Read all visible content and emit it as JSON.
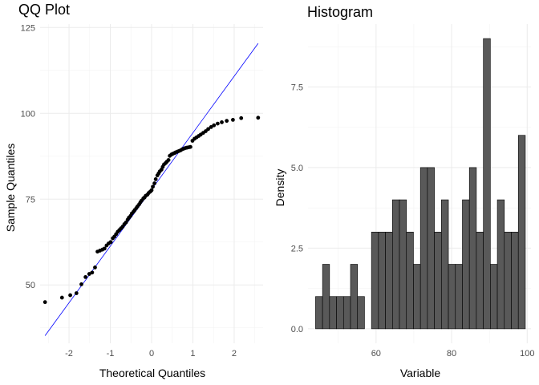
{
  "chart_data": [
    {
      "type": "scatter",
      "title": "QQ Plot",
      "xlabel": "Theoretical Quantiles",
      "ylabel": "Sample Quantiles",
      "xlim": [
        -2.7,
        2.7
      ],
      "ylim": [
        33,
        126
      ],
      "xticks": [
        -2,
        -1,
        0,
        1,
        2
      ],
      "xtick_labels": [
        "-2",
        "-1",
        "0",
        "1",
        "2"
      ],
      "yticks": [
        50,
        75,
        100,
        125
      ],
      "ytick_labels": [
        "50",
        "75",
        "100",
        "125"
      ],
      "grid": true,
      "reference_line": {
        "slope": 16.5,
        "intercept": 77.8,
        "color": "#0000ff"
      },
      "point_color": "#000000",
      "points": [
        [
          -2.58,
          45.0
        ],
        [
          -2.17,
          46.3
        ],
        [
          -1.97,
          47.0
        ],
        [
          -1.82,
          47.6
        ],
        [
          -1.7,
          50.2
        ],
        [
          -1.6,
          52.3
        ],
        [
          -1.51,
          53.2
        ],
        [
          -1.44,
          53.6
        ],
        [
          -1.37,
          55.1
        ],
        [
          -1.31,
          59.7
        ],
        [
          -1.25,
          60.0
        ],
        [
          -1.19,
          60.3
        ],
        [
          -1.14,
          60.6
        ],
        [
          -1.09,
          61.5
        ],
        [
          -1.04,
          62.1
        ],
        [
          -0.99,
          62.5
        ],
        [
          -0.94,
          63.6
        ],
        [
          -0.9,
          64.1
        ],
        [
          -0.86,
          64.8
        ],
        [
          -0.82,
          65.5
        ],
        [
          -0.78,
          66.0
        ],
        [
          -0.74,
          66.5
        ],
        [
          -0.7,
          67.0
        ],
        [
          -0.66,
          67.7
        ],
        [
          -0.62,
          68.2
        ],
        [
          -0.58,
          69.0
        ],
        [
          -0.55,
          69.6
        ],
        [
          -0.51,
          70.1
        ],
        [
          -0.48,
          70.8
        ],
        [
          -0.44,
          71.3
        ],
        [
          -0.41,
          71.8
        ],
        [
          -0.37,
          72.4
        ],
        [
          -0.34,
          72.9
        ],
        [
          -0.3,
          73.5
        ],
        [
          -0.27,
          74.1
        ],
        [
          -0.24,
          74.6
        ],
        [
          -0.2,
          75.2
        ],
        [
          -0.17,
          75.5
        ],
        [
          -0.14,
          76.0
        ],
        [
          -0.1,
          76.3
        ],
        [
          -0.07,
          76.8
        ],
        [
          -0.03,
          77.2
        ],
        [
          0.0,
          77.6
        ],
        [
          0.03,
          78.6
        ],
        [
          0.07,
          79.6
        ],
        [
          0.1,
          80.8
        ],
        [
          0.14,
          81.9
        ],
        [
          0.17,
          82.5
        ],
        [
          0.2,
          83.1
        ],
        [
          0.24,
          83.6
        ],
        [
          0.27,
          84.4
        ],
        [
          0.3,
          85.1
        ],
        [
          0.34,
          85.5
        ],
        [
          0.37,
          85.9
        ],
        [
          0.41,
          86.4
        ],
        [
          0.44,
          87.6
        ],
        [
          0.48,
          88.0
        ],
        [
          0.51,
          88.2
        ],
        [
          0.55,
          88.4
        ],
        [
          0.58,
          88.6
        ],
        [
          0.62,
          88.8
        ],
        [
          0.66,
          89.0
        ],
        [
          0.7,
          89.2
        ],
        [
          0.74,
          89.5
        ],
        [
          0.78,
          89.7
        ],
        [
          0.82,
          89.9
        ],
        [
          0.86,
          90.0
        ],
        [
          0.9,
          90.1
        ],
        [
          0.94,
          90.2
        ],
        [
          0.99,
          92.0
        ],
        [
          1.04,
          92.6
        ],
        [
          1.09,
          93.0
        ],
        [
          1.14,
          93.4
        ],
        [
          1.19,
          93.8
        ],
        [
          1.25,
          94.3
        ],
        [
          1.31,
          94.8
        ],
        [
          1.37,
          95.4
        ],
        [
          1.44,
          96.0
        ],
        [
          1.51,
          96.5
        ],
        [
          1.6,
          97.0
        ],
        [
          1.7,
          97.4
        ],
        [
          1.82,
          97.8
        ],
        [
          1.97,
          98.1
        ],
        [
          2.17,
          98.6
        ],
        [
          2.58,
          98.7
        ]
      ]
    },
    {
      "type": "bar",
      "title": "Histogram",
      "xlabel": "Variable",
      "ylabel": "Density",
      "xlim": [
        42,
        101
      ],
      "ylim": [
        -0.45,
        9.45
      ],
      "xticks": [
        60,
        80,
        100
      ],
      "xtick_labels": [
        "60",
        "80",
        "100"
      ],
      "yticks": [
        0,
        2.5,
        5,
        7.5
      ],
      "ytick_labels": [
        "0.0",
        "2.5",
        "5.0",
        "7.5"
      ],
      "grid": true,
      "bar_color": "#595959",
      "bar_edge_color": "#000000",
      "bin_start": 44.0,
      "bin_width": 1.85,
      "values": [
        1,
        2,
        1,
        1,
        1,
        2,
        1,
        0,
        3,
        3,
        3,
        4,
        4,
        3,
        2,
        5,
        5,
        3,
        4,
        2,
        2,
        4,
        5,
        3,
        9,
        2,
        4,
        3,
        3,
        6
      ]
    }
  ]
}
